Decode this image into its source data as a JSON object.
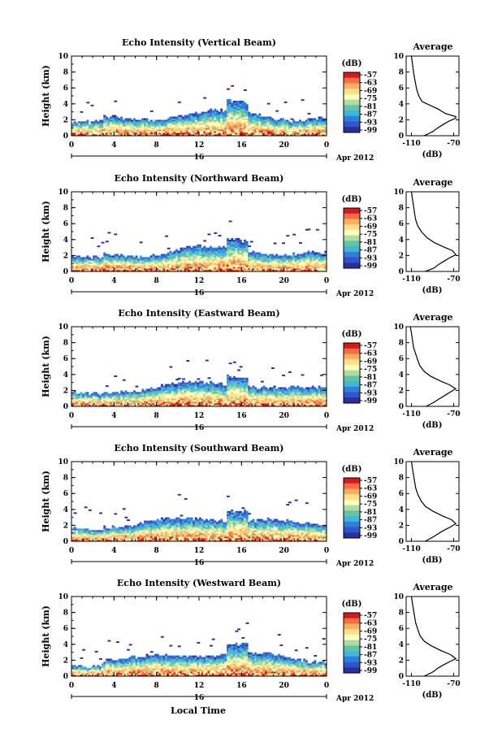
{
  "chart_data": {
    "type": "heatmap",
    "xlabel": "Local Time",
    "x_ticks": [
      "0",
      "4",
      "8",
      "12",
      "16",
      "20",
      "0"
    ],
    "date_label": "16",
    "month_label": "Apr 2012",
    "y_ticks": [
      "0",
      "2",
      "4",
      "6",
      "8",
      "10"
    ],
    "ylabel": "Height (km)",
    "ylim": [
      0,
      10
    ],
    "xlim": [
      0,
      24
    ],
    "colorbar": {
      "unit": "(dB)",
      "ticks": [
        "-57",
        "-63",
        "-69",
        "-75",
        "-81",
        "-87",
        "-93",
        "-99"
      ],
      "colors": [
        "#d7191c",
        "#f46d43",
        "#fdae61",
        "#fee08b",
        "#ffffbf",
        "#abdda4",
        "#66c2a5",
        "#3fb6e0",
        "#2f7fd8",
        "#3355cc",
        "#2b2f9e"
      ]
    },
    "profile": {
      "title": "Average",
      "xlabel": "(dB)",
      "x_ticks": [
        "-110",
        "-70"
      ],
      "xlim": [
        -115,
        -65
      ]
    },
    "panels": [
      {
        "title": "Echo Intensity (Vertical Beam)",
        "profile_points": [
          [
            -98,
            0
          ],
          [
            -90,
            0.5
          ],
          [
            -85,
            1
          ],
          [
            -80,
            1.4
          ],
          [
            -75,
            1.8
          ],
          [
            -68,
            2.2
          ],
          [
            -68,
            2.4
          ],
          [
            -78,
            2.8
          ],
          [
            -84,
            3.3
          ],
          [
            -92,
            3.8
          ],
          [
            -100,
            4.3
          ],
          [
            -103,
            5
          ],
          [
            -105,
            5.8
          ],
          [
            -106,
            6.5
          ],
          [
            -107,
            7.2
          ],
          [
            -108,
            8
          ],
          [
            -109,
            9
          ],
          [
            -110,
            10
          ]
        ]
      },
      {
        "title": "Echo Intensity (Northward Beam)",
        "profile_points": [
          [
            -97,
            0
          ],
          [
            -89,
            0.4
          ],
          [
            -84,
            0.9
          ],
          [
            -79,
            1.3
          ],
          [
            -74,
            1.7
          ],
          [
            -68,
            2.1
          ],
          [
            -71,
            2.6
          ],
          [
            -80,
            3.1
          ],
          [
            -88,
            3.6
          ],
          [
            -95,
            4.2
          ],
          [
            -100,
            4.9
          ],
          [
            -104,
            5.7
          ],
          [
            -106,
            6.5
          ],
          [
            -107,
            7.3
          ],
          [
            -108,
            8.2
          ],
          [
            -109,
            9.1
          ],
          [
            -110,
            10
          ]
        ]
      },
      {
        "title": "Echo Intensity (Eastward Beam)",
        "profile_points": [
          [
            -96,
            0
          ],
          [
            -89,
            0.5
          ],
          [
            -83,
            1
          ],
          [
            -78,
            1.4
          ],
          [
            -72,
            1.9
          ],
          [
            -68,
            2.2
          ],
          [
            -74,
            2.7
          ],
          [
            -83,
            3.2
          ],
          [
            -92,
            3.8
          ],
          [
            -98,
            4.4
          ],
          [
            -102,
            5.1
          ],
          [
            -104,
            5.8
          ],
          [
            -106,
            6.6
          ],
          [
            -108,
            7.4
          ],
          [
            -109,
            8.3
          ],
          [
            -110,
            9.2
          ],
          [
            -111,
            10
          ]
        ]
      },
      {
        "title": "Echo Intensity (Southward Beam)",
        "profile_points": [
          [
            -97,
            0
          ],
          [
            -90,
            0.5
          ],
          [
            -84,
            1
          ],
          [
            -79,
            1.4
          ],
          [
            -73,
            1.8
          ],
          [
            -68,
            2.2
          ],
          [
            -72,
            2.7
          ],
          [
            -81,
            3.2
          ],
          [
            -90,
            3.8
          ],
          [
            -97,
            4.4
          ],
          [
            -101,
            5.1
          ],
          [
            -104,
            5.9
          ],
          [
            -106,
            6.7
          ],
          [
            -107,
            7.5
          ],
          [
            -108,
            8.3
          ],
          [
            -109,
            9.1
          ],
          [
            -110,
            10
          ]
        ]
      },
      {
        "title": "Echo Intensity (Westward Beam)",
        "profile_points": [
          [
            -98,
            0
          ],
          [
            -90,
            0.5
          ],
          [
            -85,
            1
          ],
          [
            -80,
            1.4
          ],
          [
            -74,
            1.8
          ],
          [
            -68,
            2.2
          ],
          [
            -73,
            2.7
          ],
          [
            -82,
            3.2
          ],
          [
            -91,
            3.8
          ],
          [
            -98,
            4.4
          ],
          [
            -102,
            5.1
          ],
          [
            -104,
            5.9
          ],
          [
            -106,
            6.7
          ],
          [
            -107,
            7.5
          ],
          [
            -108,
            8.3
          ],
          [
            -109,
            9.1
          ],
          [
            -110,
            10
          ]
        ]
      }
    ]
  }
}
